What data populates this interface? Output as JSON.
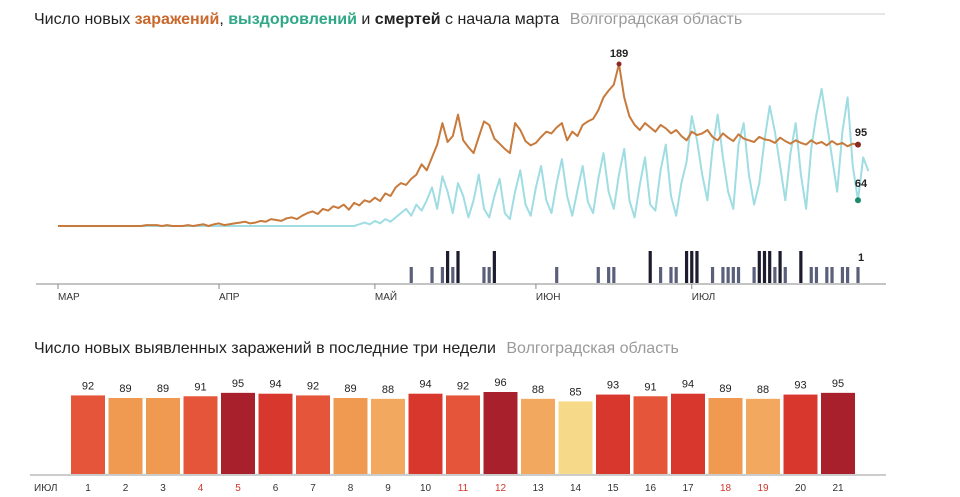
{
  "chart1": {
    "title_parts": {
      "p1": "Число новых ",
      "infections": "заражений",
      "p2": ", ",
      "recoveries": "выздоровлений",
      "p3": " и ",
      "deaths": "смертей",
      "p4": " с начала марта"
    },
    "region": "Волгоградская область"
  },
  "chart2": {
    "title": "Число новых выявленных заражений в последние три недели",
    "region": "Волгоградская область"
  },
  "colors": {
    "infections": "#c77a3b",
    "infections_end": "#8b2a24",
    "recoveries": "#43b89a",
    "recoveries_light": "#9fdde3",
    "recoveries_dark": "#1d8a6b",
    "deaths": "#1c1c2e",
    "deaths_light": "#5a5f7a"
  },
  "chart_data": [
    {
      "type": "line",
      "title": "Число новых заражений, выздоровлений и смертей с начала марта",
      "region": "Волгоградская область",
      "x_start": "2020-03-01",
      "x_ticks": [
        "МАР",
        "АПР",
        "МАЙ",
        "ИЮН",
        "ИЮЛ"
      ],
      "series": [
        {
          "name": "заражений",
          "values": [
            0,
            0,
            0,
            0,
            0,
            0,
            0,
            0,
            0,
            0,
            0,
            0,
            0,
            0,
            0,
            0,
            0,
            1,
            1,
            1,
            0,
            1,
            0,
            0,
            0,
            1,
            0,
            1,
            2,
            0,
            2,
            3,
            1,
            2,
            3,
            4,
            5,
            3,
            4,
            6,
            5,
            8,
            7,
            6,
            9,
            10,
            8,
            12,
            15,
            17,
            14,
            20,
            18,
            23,
            21,
            25,
            19,
            27,
            24,
            30,
            28,
            33,
            29,
            38,
            35,
            45,
            50,
            48,
            55,
            60,
            72,
            65,
            80,
            95,
            120,
            98,
            105,
            130,
            100,
            92,
            85,
            104,
            122,
            118,
            102,
            96,
            90,
            85,
            120,
            112,
            99,
            94,
            97,
            104,
            110,
            108,
            115,
            120,
            100,
            110,
            105,
            118,
            122,
            125,
            135,
            150,
            158,
            165,
            189,
            150,
            128,
            118,
            112,
            120,
            115,
            110,
            118,
            114,
            108,
            112,
            105,
            100,
            110,
            106,
            108,
            112,
            104,
            100,
            108,
            103,
            99,
            107,
            102,
            100,
            98,
            104,
            101,
            100,
            97,
            103,
            99,
            96,
            100,
            97,
            95,
            100,
            96,
            98,
            94,
            99,
            95,
            97,
            93,
            96,
            95
          ]
        },
        {
          "name": "выздоровлений",
          "values": [
            0,
            0,
            0,
            0,
            0,
            0,
            0,
            0,
            0,
            0,
            0,
            0,
            0,
            0,
            0,
            0,
            0,
            0,
            0,
            0,
            0,
            0,
            0,
            0,
            0,
            0,
            0,
            0,
            0,
            0,
            0,
            0,
            0,
            0,
            0,
            0,
            0,
            0,
            0,
            0,
            0,
            0,
            0,
            0,
            0,
            0,
            0,
            0,
            0,
            0,
            0,
            0,
            0,
            0,
            0,
            0,
            0,
            0,
            2,
            4,
            2,
            6,
            3,
            8,
            5,
            10,
            15,
            20,
            12,
            25,
            18,
            30,
            45,
            20,
            58,
            40,
            15,
            50,
            35,
            10,
            30,
            60,
            20,
            10,
            35,
            55,
            15,
            8,
            40,
            65,
            25,
            12,
            45,
            70,
            30,
            15,
            50,
            78,
            35,
            12,
            42,
            70,
            28,
            15,
            55,
            85,
            40,
            20,
            60,
            90,
            30,
            10,
            48,
            80,
            25,
            18,
            65,
            95,
            35,
            12,
            50,
            75,
            128,
            100,
            60,
            30,
            90,
            130,
            80,
            40,
            20,
            95,
            120,
            60,
            25,
            50,
            100,
            140,
            110,
            70,
            30,
            85,
            120,
            60,
            20,
            90,
            130,
            160,
            120,
            80,
            40,
            110,
            150,
            70,
            30,
            80,
            64
          ]
        }
      ],
      "deaths_series": {
        "name": "смертей",
        "values": [
          0,
          0,
          0,
          0,
          0,
          0,
          0,
          0,
          0,
          0,
          0,
          0,
          0,
          0,
          0,
          0,
          0,
          0,
          0,
          0,
          0,
          0,
          0,
          0,
          0,
          0,
          0,
          0,
          0,
          0,
          0,
          0,
          0,
          0,
          0,
          0,
          0,
          0,
          0,
          0,
          0,
          0,
          0,
          0,
          0,
          0,
          0,
          0,
          0,
          0,
          0,
          0,
          0,
          0,
          0,
          0,
          0,
          0,
          0,
          0,
          0,
          0,
          0,
          0,
          0,
          0,
          0,
          0,
          1,
          0,
          0,
          0,
          1,
          0,
          1,
          2,
          1,
          2,
          0,
          0,
          0,
          0,
          1,
          1,
          2,
          0,
          0,
          0,
          0,
          0,
          0,
          0,
          0,
          0,
          0,
          0,
          1,
          0,
          0,
          0,
          0,
          0,
          0,
          0,
          1,
          0,
          1,
          1,
          0,
          0,
          0,
          0,
          0,
          0,
          2,
          0,
          1,
          0,
          1,
          1,
          0,
          2,
          2,
          2,
          0,
          0,
          1,
          0,
          1,
          1,
          1,
          1,
          0,
          0,
          1,
          2,
          2,
          2,
          1,
          2,
          1,
          0,
          0,
          2,
          0,
          1,
          1,
          0,
          1,
          1,
          0,
          1,
          1,
          0,
          1
        ]
      },
      "end_labels": {
        "infections": "95",
        "recoveries": "64",
        "deaths": "1"
      },
      "peak_label": "189"
    },
    {
      "type": "bar",
      "title": "Число новых выявленных заражений в последние три недели",
      "region": "Волгоградская область",
      "month_label": "ИЮЛ",
      "categories": [
        "1",
        "2",
        "3",
        "4",
        "5",
        "6",
        "7",
        "8",
        "9",
        "10",
        "11",
        "12",
        "13",
        "14",
        "15",
        "16",
        "17",
        "18",
        "19",
        "20",
        "21"
      ],
      "values": [
        92,
        89,
        89,
        91,
        95,
        94,
        92,
        89,
        88,
        94,
        92,
        96,
        88,
        85,
        93,
        91,
        94,
        89,
        88,
        93,
        95
      ],
      "weekend_days": [
        "4",
        "5",
        "11",
        "12",
        "18",
        "19"
      ],
      "ylim": [
        0,
        96
      ]
    }
  ]
}
